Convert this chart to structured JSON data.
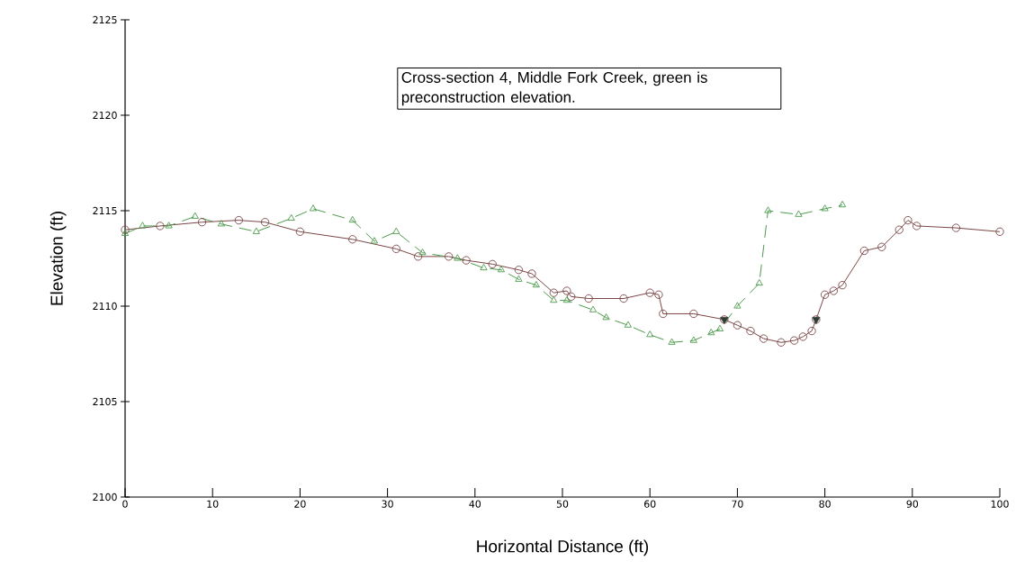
{
  "chart_data": {
    "type": "line",
    "xlabel": "Horizontal Distance (ft)",
    "ylabel": "Elevation (ft)",
    "xlim": [
      0,
      100
    ],
    "ylim": [
      2100,
      2125
    ],
    "xticks": [
      0,
      10,
      20,
      30,
      40,
      50,
      60,
      70,
      80,
      90,
      100
    ],
    "yticks": [
      2100,
      2105,
      2110,
      2115,
      2120,
      2125
    ],
    "annotations": [
      "Cross-section 4, Middle Fork Creek, green is preconstruction elevation."
    ],
    "series": [
      {
        "color": "#7a4545",
        "marker": "circle",
        "line_style": "solid",
        "x": [
          0,
          4,
          8.8,
          13,
          16,
          20,
          26,
          31,
          33.5,
          37,
          39,
          42,
          45,
          46.5,
          49,
          50.5,
          51,
          53,
          57,
          60,
          61,
          61.5,
          65,
          68.5,
          70,
          71.5,
          73,
          75,
          76.5,
          77.5,
          78.5,
          79,
          80,
          81,
          82,
          84.5,
          86.5,
          88.5,
          89.5,
          90.5,
          95,
          100
        ],
        "values": [
          2114.0,
          2114.2,
          2114.4,
          2114.5,
          2114.4,
          2113.9,
          2113.5,
          2113.0,
          2112.6,
          2112.6,
          2112.4,
          2112.2,
          2111.9,
          2111.7,
          2110.7,
          2110.8,
          2110.5,
          2110.4,
          2110.4,
          2110.7,
          2110.6,
          2109.6,
          2109.6,
          2109.3,
          2109.0,
          2108.7,
          2108.3,
          2108.1,
          2108.2,
          2108.4,
          2108.7,
          2109.3,
          2110.6,
          2110.8,
          2111.1,
          2112.9,
          2113.1,
          2114.0,
          2114.5,
          2114.2,
          2114.1,
          2113.9
        ]
      },
      {
        "color": "#4c9a4c",
        "marker": "triangle",
        "line_style": "dashed",
        "x": [
          0,
          2,
          5,
          8,
          11,
          15,
          19,
          21.5,
          26,
          28.5,
          31,
          34,
          38,
          41,
          43,
          45,
          47,
          49,
          50.5,
          53.5,
          55,
          57.5,
          60,
          62.5,
          65,
          67,
          68,
          70,
          72.5,
          73.5,
          77,
          80,
          82
        ],
        "values": [
          2113.8,
          2114.2,
          2114.2,
          2114.7,
          2114.3,
          2113.9,
          2114.6,
          2115.1,
          2114.5,
          2113.4,
          2113.9,
          2112.8,
          2112.5,
          2112.0,
          2111.9,
          2111.4,
          2111.1,
          2110.3,
          2110.3,
          2109.8,
          2109.4,
          2109.0,
          2108.5,
          2108.1,
          2108.2,
          2108.6,
          2108.8,
          2110.0,
          2111.2,
          2115.0,
          2114.8,
          2115.1,
          2115.3
        ]
      },
      {
        "type": "scatter",
        "color": "#2f3a35",
        "marker": "triangle",
        "x": [
          68.5,
          79
        ],
        "values": [
          2109.3,
          2109.3
        ]
      }
    ]
  }
}
